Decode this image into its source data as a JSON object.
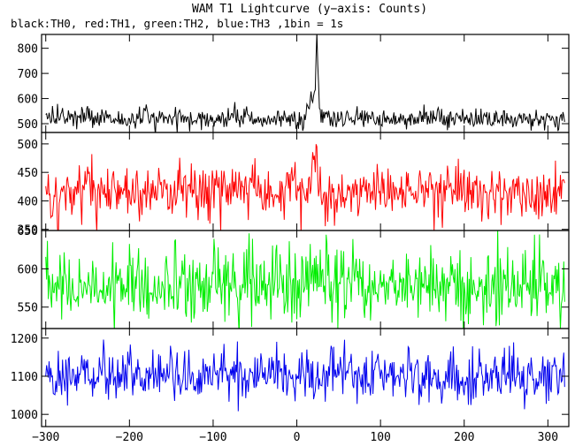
{
  "chart_data": {
    "type": "line",
    "title": "WAM T1 Lightcurve (y−axis: Counts)",
    "subtitle": "black:TH0, red:TH1, green:TH2, blue:TH3 ,1bin = 1s",
    "x_range": [
      -305,
      325
    ],
    "x_ticks": [
      -300,
      -200,
      -100,
      0,
      100,
      200,
      300
    ],
    "x_tick_labels": [
      "−300",
      "−200",
      "−100",
      "0",
      "100",
      "200",
      "300"
    ],
    "bin_seconds": 1,
    "panels": [
      {
        "series_name": "TH0",
        "color": "#000000",
        "ylim": [
          465,
          855
        ],
        "y_ticks": [
          500,
          600,
          700,
          800
        ],
        "y_tick_labels": [
          "500",
          "600",
          "700",
          "800"
        ],
        "baseline": 520,
        "noise": 23,
        "events": [
          {
            "x": 18,
            "peak": 600,
            "width": 4
          },
          {
            "x": 24,
            "peak": 840,
            "width": 2
          }
        ]
      },
      {
        "series_name": "TH1",
        "color": "#ff0000",
        "ylim": [
          348,
          520
        ],
        "y_ticks": [
          350,
          400,
          450,
          500
        ],
        "y_tick_labels": [
          "350",
          "400",
          "450",
          "500"
        ],
        "baseline": 415,
        "noise": 23,
        "events": [
          {
            "x": 22,
            "peak": 500,
            "width": 5
          }
        ]
      },
      {
        "series_name": "TH2",
        "color": "#00ee00",
        "ylim": [
          522,
          650
        ],
        "y_ticks": [
          550,
          600,
          650
        ],
        "y_tick_labels": [
          "550",
          "600",
          "650"
        ],
        "baseline": 580,
        "noise": 24,
        "events": []
      },
      {
        "series_name": "TH3",
        "color": "#0000ee",
        "ylim": [
          968,
          1225
        ],
        "y_ticks": [
          1000,
          1100,
          1200
        ],
        "y_tick_labels": [
          "1000",
          "1100",
          "1200"
        ],
        "baseline": 1100,
        "noise": 34,
        "events": []
      }
    ]
  }
}
